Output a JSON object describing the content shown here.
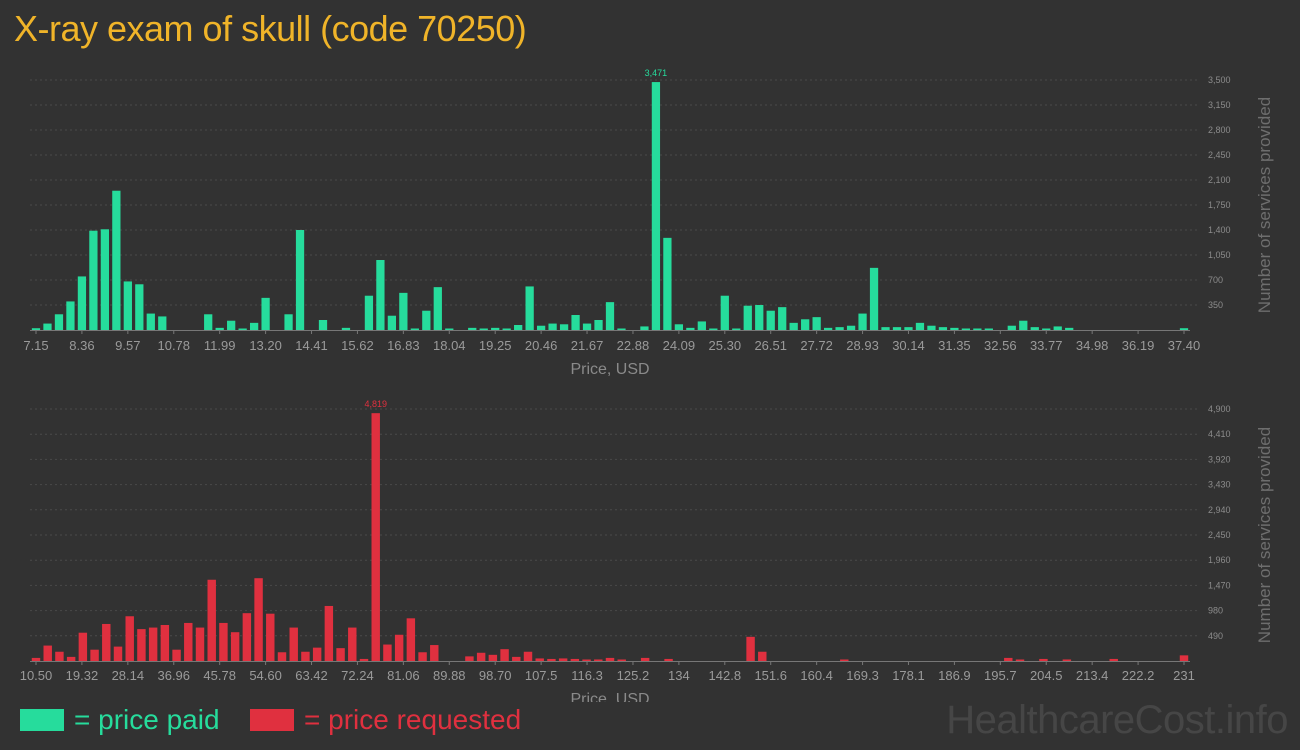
{
  "title": "X-ray exam of skull (code 70250)",
  "legend": {
    "paid_label": "= price paid",
    "requested_label": "= price requested"
  },
  "watermark": "HealthcareCost.info",
  "colors": {
    "paid": "#26dc9c",
    "requested": "#e0303f",
    "title": "#f0b429"
  },
  "chart_data": [
    {
      "type": "bar",
      "xlabel": "Price, USD",
      "ylabel": "Number of services provided",
      "x_ticks": [
        "7.15",
        "8.36",
        "9.57",
        "10.78",
        "11.99",
        "13.20",
        "14.41",
        "15.62",
        "16.83",
        "18.04",
        "19.25",
        "20.46",
        "21.67",
        "22.88",
        "24.09",
        "25.30",
        "26.51",
        "27.72",
        "28.93",
        "30.14",
        "31.35",
        "32.56",
        "33.77",
        "34.98",
        "36.19",
        "37.40"
      ],
      "y_ticks": [
        "350",
        "700",
        "1,050",
        "1,400",
        "1,750",
        "2,100",
        "2,450",
        "2,800",
        "3,150",
        "3,500"
      ],
      "ylim": [
        0,
        3500
      ],
      "peak_label": "3,471",
      "values": [
        25,
        90,
        220,
        400,
        750,
        1390,
        1410,
        1950,
        680,
        640,
        230,
        190,
        0,
        0,
        0,
        220,
        30,
        130,
        20,
        100,
        450,
        0,
        220,
        1400,
        0,
        140,
        0,
        30,
        0,
        480,
        980,
        200,
        520,
        20,
        270,
        600,
        20,
        0,
        30,
        10,
        30,
        20,
        70,
        610,
        60,
        90,
        80,
        210,
        90,
        140,
        390,
        20,
        0,
        50,
        3471,
        1290,
        80,
        30,
        120,
        10,
        480,
        20,
        340,
        350,
        270,
        320,
        100,
        150,
        180,
        30,
        40,
        60,
        230,
        870,
        40,
        40,
        40,
        100,
        60,
        40,
        30,
        20,
        20,
        20,
        0,
        60,
        130,
        40,
        20,
        50,
        30,
        0,
        0,
        0,
        0,
        0,
        0,
        0,
        0,
        0,
        25
      ]
    },
    {
      "type": "bar",
      "xlabel": "Price, USD",
      "ylabel": "Number of services provided",
      "x_ticks": [
        "10.50",
        "19.32",
        "28.14",
        "36.96",
        "45.78",
        "54.60",
        "63.42",
        "72.24",
        "81.06",
        "89.88",
        "98.70",
        "107.5",
        "116.3",
        "125.2",
        "134",
        "142.8",
        "151.6",
        "160.4",
        "169.3",
        "178.1",
        "186.9",
        "195.7",
        "204.5",
        "213.4",
        "222.2",
        "231"
      ],
      "y_ticks": [
        "490",
        "980",
        "1,470",
        "1,960",
        "2,450",
        "2,940",
        "3,430",
        "3,920",
        "4,410",
        "4,900"
      ],
      "ylim": [
        0,
        4900
      ],
      "peak_label": "4,819",
      "values": [
        60,
        300,
        180,
        80,
        550,
        220,
        720,
        280,
        870,
        620,
        650,
        700,
        220,
        740,
        650,
        1580,
        740,
        560,
        930,
        1610,
        920,
        170,
        650,
        180,
        260,
        1070,
        250,
        650,
        40,
        4819,
        320,
        510,
        830,
        170,
        310,
        0,
        0,
        90,
        160,
        120,
        230,
        80,
        180,
        50,
        40,
        50,
        40,
        20,
        30,
        60,
        20,
        0,
        60,
        0,
        40,
        0,
        0,
        0,
        0,
        0,
        0,
        470,
        180,
        0,
        0,
        0,
        0,
        0,
        0,
        20,
        0,
        0,
        0,
        0,
        0,
        0,
        0,
        0,
        0,
        0,
        0,
        0,
        0,
        60,
        20,
        0,
        40,
        0,
        30,
        0,
        0,
        0,
        40,
        0,
        0,
        0,
        0,
        0,
        110
      ]
    }
  ]
}
